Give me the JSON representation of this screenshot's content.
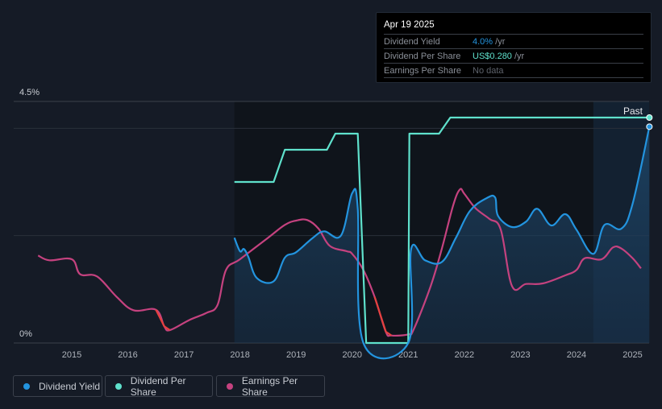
{
  "tooltip": {
    "date": "Apr 19 2025",
    "rows": [
      {
        "label": "Dividend Yield",
        "value": "4.0%",
        "unit": " /yr"
      },
      {
        "label": "Dividend Per Share",
        "value": "US$0.280",
        "unit": " /yr"
      },
      {
        "label": "Earnings Per Share",
        "value": "No data",
        "unit": ""
      }
    ]
  },
  "legend": [
    "Dividend Yield",
    "Dividend Per Share",
    "Earnings Per Share"
  ],
  "colors": {
    "yield": "#2394df",
    "dps": "#5fe1cc",
    "eps": "#c5427f",
    "eps_decline": "#e5413f"
  },
  "chart_data": {
    "type": "line",
    "title": "",
    "xlabel": "",
    "ylabel": "",
    "xlim": [
      2014.0,
      2025.3
    ],
    "ylim": [
      0,
      4.5
    ],
    "y_tick_labels": [
      "0%",
      "4.5%"
    ],
    "x_tick_labels": [
      "2015",
      "2016",
      "2017",
      "2018",
      "2019",
      "2020",
      "2021",
      "2022",
      "2023",
      "2024",
      "2025"
    ],
    "annotation": "Past",
    "series": [
      {
        "name": "Dividend Yield",
        "unit": "%",
        "points": [
          [
            2017.9,
            1.96
          ],
          [
            2018.0,
            1.71
          ],
          [
            2018.07,
            1.75
          ],
          [
            2018.15,
            1.6
          ],
          [
            2018.3,
            1.21
          ],
          [
            2018.6,
            1.15
          ],
          [
            2018.8,
            1.59
          ],
          [
            2019.0,
            1.69
          ],
          [
            2019.3,
            1.96
          ],
          [
            2019.5,
            2.08
          ],
          [
            2019.8,
            2.0
          ],
          [
            2020.0,
            2.79
          ],
          [
            2020.1,
            2.5
          ],
          [
            2020.2,
            0
          ],
          [
            2021.0,
            0
          ],
          [
            2021.05,
            1.74
          ],
          [
            2021.3,
            1.54
          ],
          [
            2021.6,
            1.51
          ],
          [
            2021.85,
            1.96
          ],
          [
            2022.1,
            2.46
          ],
          [
            2022.4,
            2.7
          ],
          [
            2022.55,
            2.71
          ],
          [
            2022.6,
            2.37
          ],
          [
            2022.85,
            2.16
          ],
          [
            2023.1,
            2.26
          ],
          [
            2023.3,
            2.5
          ],
          [
            2023.55,
            2.19
          ],
          [
            2023.8,
            2.4
          ],
          [
            2024.0,
            2.11
          ],
          [
            2024.3,
            1.66
          ],
          [
            2024.5,
            2.2
          ],
          [
            2024.8,
            2.13
          ],
          [
            2025.0,
            2.59
          ],
          [
            2025.3,
            4.03
          ]
        ]
      },
      {
        "name": "Dividend Per Share",
        "unit": "US$",
        "points": [
          [
            2017.9,
            0.2
          ],
          [
            2018.6,
            0.2
          ],
          [
            2018.8,
            0.24
          ],
          [
            2019.55,
            0.24
          ],
          [
            2019.7,
            0.26
          ],
          [
            2020.1,
            0.26
          ],
          [
            2020.25,
            0
          ],
          [
            2021.0,
            0
          ],
          [
            2021.02,
            0.26
          ],
          [
            2021.55,
            0.26
          ],
          [
            2021.75,
            0.28
          ],
          [
            2025.3,
            0.28
          ]
        ]
      },
      {
        "name": "Earnings Per Share",
        "unit": "relative",
        "points": [
          [
            2014.4,
            1.63
          ],
          [
            2014.6,
            1.54
          ],
          [
            2015.0,
            1.56
          ],
          [
            2015.15,
            1.28
          ],
          [
            2015.45,
            1.24
          ],
          [
            2015.8,
            0.86
          ],
          [
            2016.1,
            0.61
          ],
          [
            2016.5,
            0.62
          ],
          [
            2016.65,
            0.31
          ],
          [
            2016.75,
            0.24
          ],
          [
            2017.1,
            0.43
          ],
          [
            2017.4,
            0.56
          ],
          [
            2017.6,
            0.71
          ],
          [
            2017.75,
            1.36
          ],
          [
            2018.0,
            1.56
          ],
          [
            2018.5,
            1.96
          ],
          [
            2018.8,
            2.2
          ],
          [
            2019.0,
            2.28
          ],
          [
            2019.2,
            2.29
          ],
          [
            2019.4,
            2.13
          ],
          [
            2019.6,
            1.81
          ],
          [
            2019.9,
            1.71
          ],
          [
            2020.0,
            1.66
          ],
          [
            2020.2,
            1.36
          ],
          [
            2020.4,
            0.86
          ],
          [
            2020.6,
            0.21
          ],
          [
            2020.7,
            0.14
          ],
          [
            2021.0,
            0.16
          ],
          [
            2021.1,
            0.26
          ],
          [
            2021.4,
            1.06
          ],
          [
            2021.6,
            1.76
          ],
          [
            2021.8,
            2.56
          ],
          [
            2021.92,
            2.86
          ],
          [
            2022.0,
            2.78
          ],
          [
            2022.2,
            2.51
          ],
          [
            2022.45,
            2.31
          ],
          [
            2022.65,
            2.11
          ],
          [
            2022.85,
            1.06
          ],
          [
            2023.1,
            1.1
          ],
          [
            2023.4,
            1.11
          ],
          [
            2023.8,
            1.26
          ],
          [
            2024.0,
            1.36
          ],
          [
            2024.15,
            1.58
          ],
          [
            2024.45,
            1.56
          ],
          [
            2024.65,
            1.78
          ],
          [
            2024.8,
            1.76
          ],
          [
            2025.0,
            1.58
          ],
          [
            2025.15,
            1.39
          ]
        ]
      }
    ]
  }
}
